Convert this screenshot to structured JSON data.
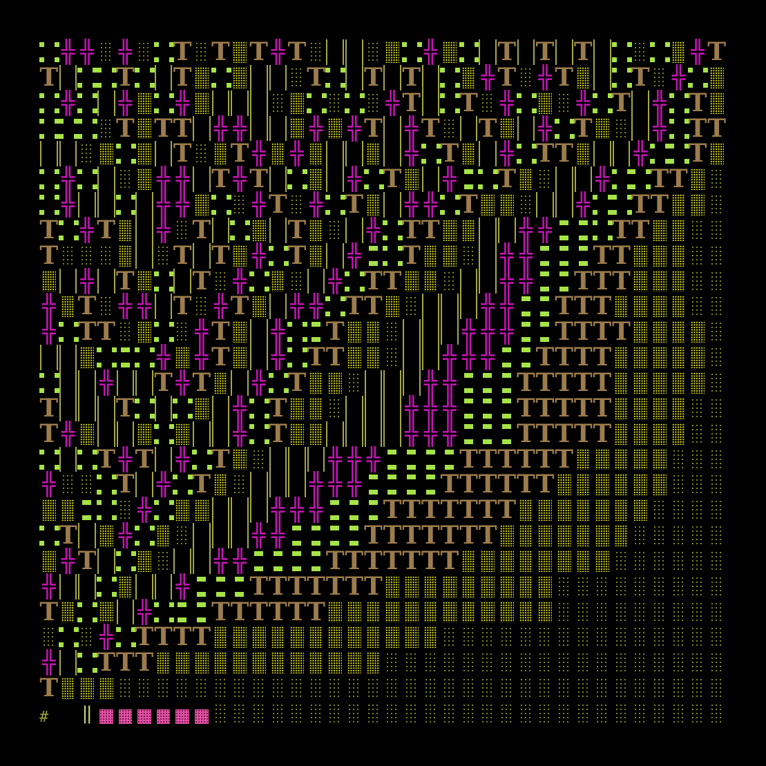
{
  "tile_legend": {
    ".": "grass",
    "-": "grass-bars",
    "+": "tree",
    "T": "wall",
    "%": "dense-shrub",
    ":": "sparse-ground",
    "|": "tall-grass",
    "P": "pink-block",
    "#": "hash",
    "\"": "double-bar",
    " ": "empty"
  },
  "glyphs": {
    "+": "╬",
    "T": "T",
    "#": "#",
    "\"": "‖"
  },
  "colors": {
    "grass": "#a6e347",
    "tree": "#c414b4",
    "wall": "#9c7c4c",
    "dense": "#e4e61a",
    "sparse": "#8e9422",
    "pink": "#e050a4",
    "background": "#000000"
  },
  "map_rows": [
    ".++:+:.T:T%T+T:||:%.+%.|T|T|T|.:.%+T",
    "T|..T.|T%.%||:T.|T|T|.%+T:+T%|.T:+.%",
    ".+.|+%.+%|||:%.:.:+T|.T:+.%:+.T|+.T%",
    "...:T%TT|++||%+%+T|+T:|T%|+.T%:|+.TT",
    "||:%.%|T:%T+%+%||%|+.T%|+.TT%||+..T%",
    ".+.|:%++|T+T|.%|+.T%|+-.T%:||+..TT%:",
    ".+||.|++%.:+T:+.T%|++.T%%:||+..TT%%:",
    "T.+T%|+:T|.%|T%:|+.TT%%||++--.TT%%::",
    "T:::%|:T|T%+.T%|+-.T%%:|++---TT%%%::",
    "%|+|T%.|T:+.%:|+.TT%%:||++--TTT%%%::",
    "+%T:++|T:+T%|++.TT%:|||++--TTT%%%%::",
    "+.TT:%.:+T%|+.-T%%:|||+++--TTTT%%%%:",
    "||%.-.+%+T%|+.TT%%:||+++--TTTT%%%%%:",
    ".||+||T+T%|+.T%%:|||++---TTTTT%%%%%:",
    "T|||T.|.%|+.T%%:|||+++---TTTTT%%%%::",
    "T+%||%.%||+.T%%||||+++---TTTTT%%%%::",
    ".|.T+T|+.T%:|||+++----TTTTTT%%%%%:::",
    "+::.T|+.T%:|||+++----TTTTTT%%%%%%:::",
    "%%-.:+.%%|||+++---TTTTTTT%%%%%%%::::",
    ".T|%+.%:|||++----TTTTTTT%%%%%%%:::::",
    "%+T|.%:||++----TTTTTTT%%%%%%%%::::::",
    "+||.%||+---TTTTTTT%%%%%%%%%:::::::::",
    "T%.%|+.--TTTTTT%%%%%%%%%%%%:::::::::",
    ":.:+.TTTT%%%%%%%%%%%%:::::::::::::::",
    "+|.TTT%%%%%%%%%%%%::::::::::::::::::",
    "T%%%::::::::::::::::::::::::::::::::",
    "# \"PPPPPP:::::::::::::::::::::::::::"
  ]
}
